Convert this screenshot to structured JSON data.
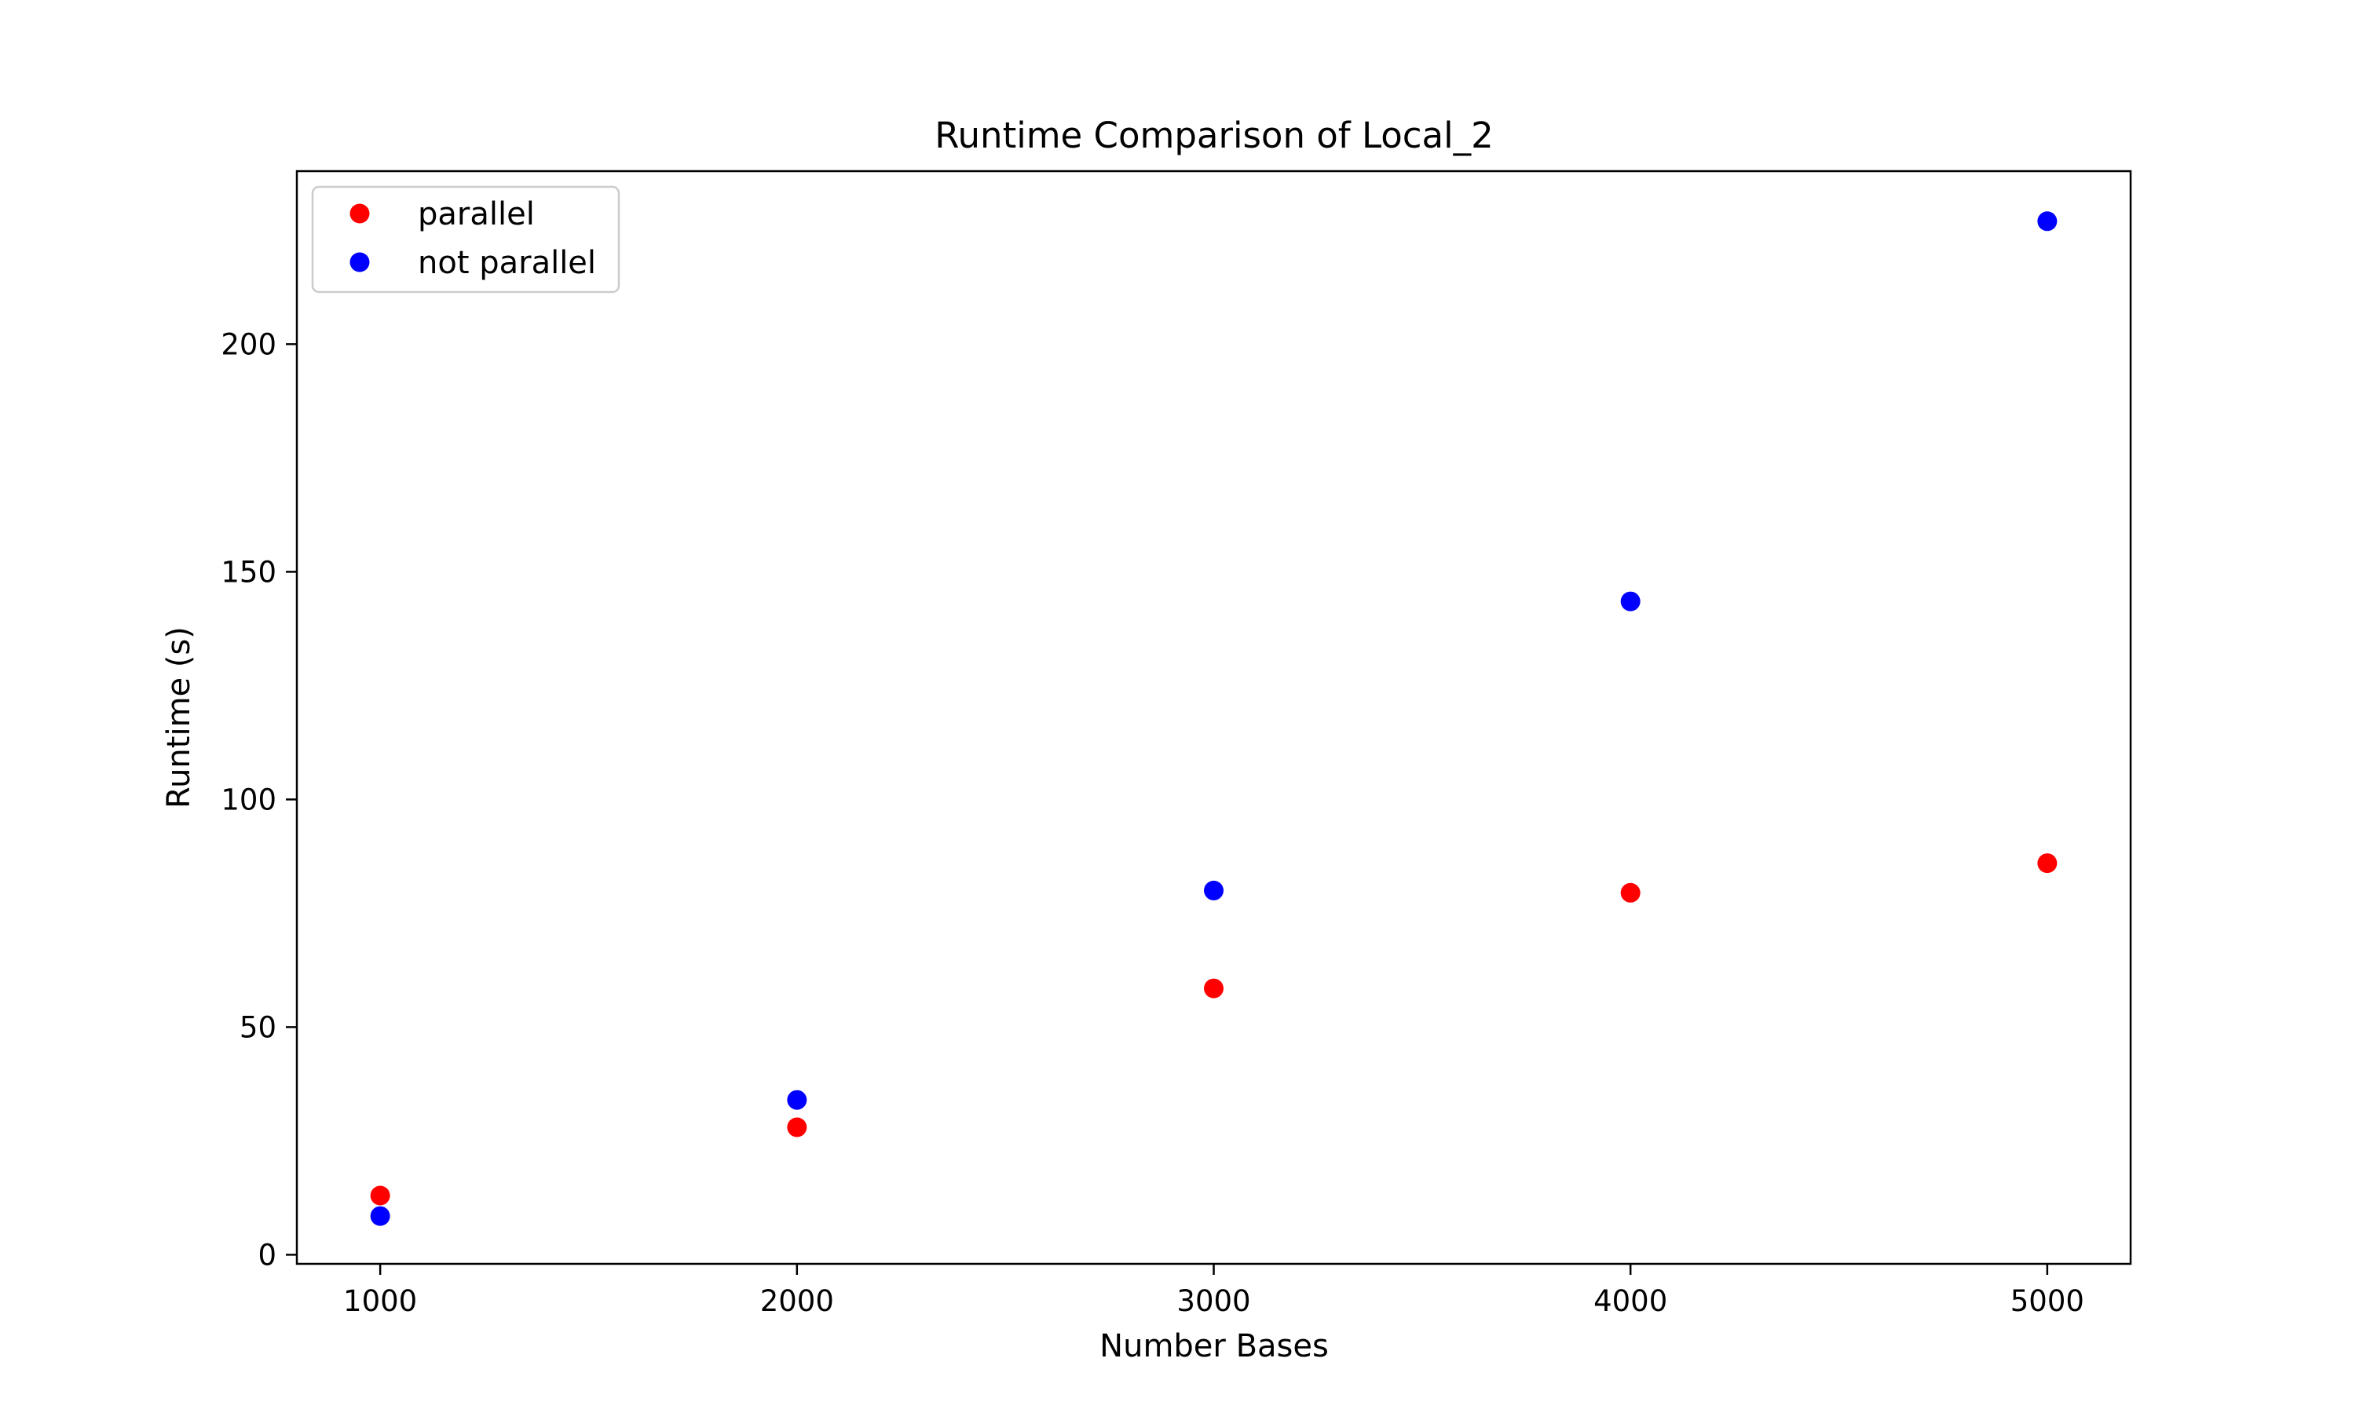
{
  "chart_data": {
    "type": "scatter",
    "title": "Runtime Comparison of Local_2",
    "xlabel": "Number Bases",
    "ylabel": "Runtime (s)",
    "xlim": [
      800,
      5200
    ],
    "ylim": [
      -2,
      238
    ],
    "xticks": [
      1000,
      2000,
      3000,
      4000,
      5000
    ],
    "yticks": [
      0,
      50,
      100,
      150,
      200
    ],
    "grid": false,
    "legend_position": "upper-left",
    "series": [
      {
        "name": "parallel",
        "color": "#ff0000",
        "x": [
          1000,
          2000,
          3000,
          4000,
          5000
        ],
        "y": [
          13,
          28,
          58.5,
          79.5,
          86
        ]
      },
      {
        "name": "not parallel",
        "color": "#0000ff",
        "x": [
          1000,
          2000,
          3000,
          4000,
          5000
        ],
        "y": [
          8.5,
          34,
          80,
          143.5,
          227
        ]
      }
    ]
  }
}
